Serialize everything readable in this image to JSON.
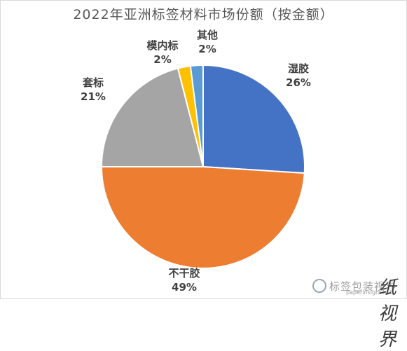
{
  "chart_data": {
    "type": "pie",
    "title": "2022年亚洲标签材料市场份额（按金额）",
    "slices": [
      {
        "label": "湿胶",
        "value": 26,
        "display": "26%",
        "color": "#4472C4"
      },
      {
        "label": "不干胶",
        "value": 49,
        "display": "49%",
        "color": "#ED7D31"
      },
      {
        "label": "套标",
        "value": 21,
        "display": "21%",
        "color": "#A5A5A5"
      },
      {
        "label": "模内标",
        "value": 2,
        "display": "2%",
        "color": "#FFC000"
      },
      {
        "label": "其他",
        "value": 2,
        "display": "2%",
        "color": "#5B9BD5"
      }
    ],
    "start": "12 o'clock",
    "direction": "clockwise"
  },
  "watermark": {
    "name": "标签包装视界",
    "url": "paperinsight.net",
    "brand": "纸视界"
  }
}
